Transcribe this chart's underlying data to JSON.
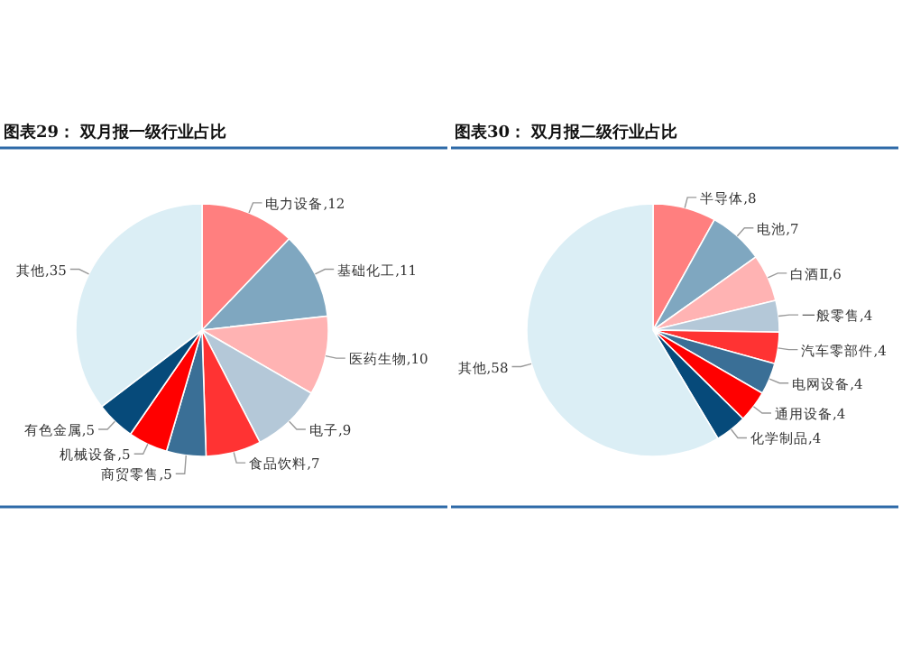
{
  "chart_data": [
    {
      "type": "pie",
      "title": "图表29：  双月报一级行业占比",
      "categories": [
        "电力设备",
        "基础化工",
        "医药生物",
        "电子",
        "食品饮料",
        "商贸零售",
        "机械设备",
        "有色金属",
        "其他"
      ],
      "values": [
        12,
        11,
        10,
        9,
        7,
        5,
        5,
        5,
        35
      ],
      "value_labels": [
        ",12",
        ",11",
        ",10",
        ",9",
        ",7",
        ",5",
        ",5",
        ",5",
        ",35"
      ],
      "colors": [
        "#ff7f7f",
        "#7fa7c0",
        "#ffb3b3",
        "#b4c8d8",
        "#ff3333",
        "#3a6f96",
        "#ff0000",
        "#064a7a",
        "#dbeef5"
      ]
    },
    {
      "type": "pie",
      "title": "图表30：  双月报二级行业占比",
      "categories": [
        "半导体",
        "电池",
        "白酒Ⅱ",
        "一般零售",
        "汽车零部件",
        "电网设备",
        "通用设备",
        "化学制品",
        "其他"
      ],
      "values": [
        8,
        7,
        6,
        4,
        4,
        4,
        4,
        4,
        58
      ],
      "value_labels": [
        ",8",
        ",7",
        ",6",
        ",4",
        ",4",
        ",4",
        ",4",
        ",4",
        ",58"
      ],
      "colors": [
        "#ff7f7f",
        "#7fa7c0",
        "#ffb3b3",
        "#b4c8d8",
        "#ff3333",
        "#3a6f96",
        "#ff0000",
        "#064a7a",
        "#dbeef5"
      ]
    }
  ]
}
